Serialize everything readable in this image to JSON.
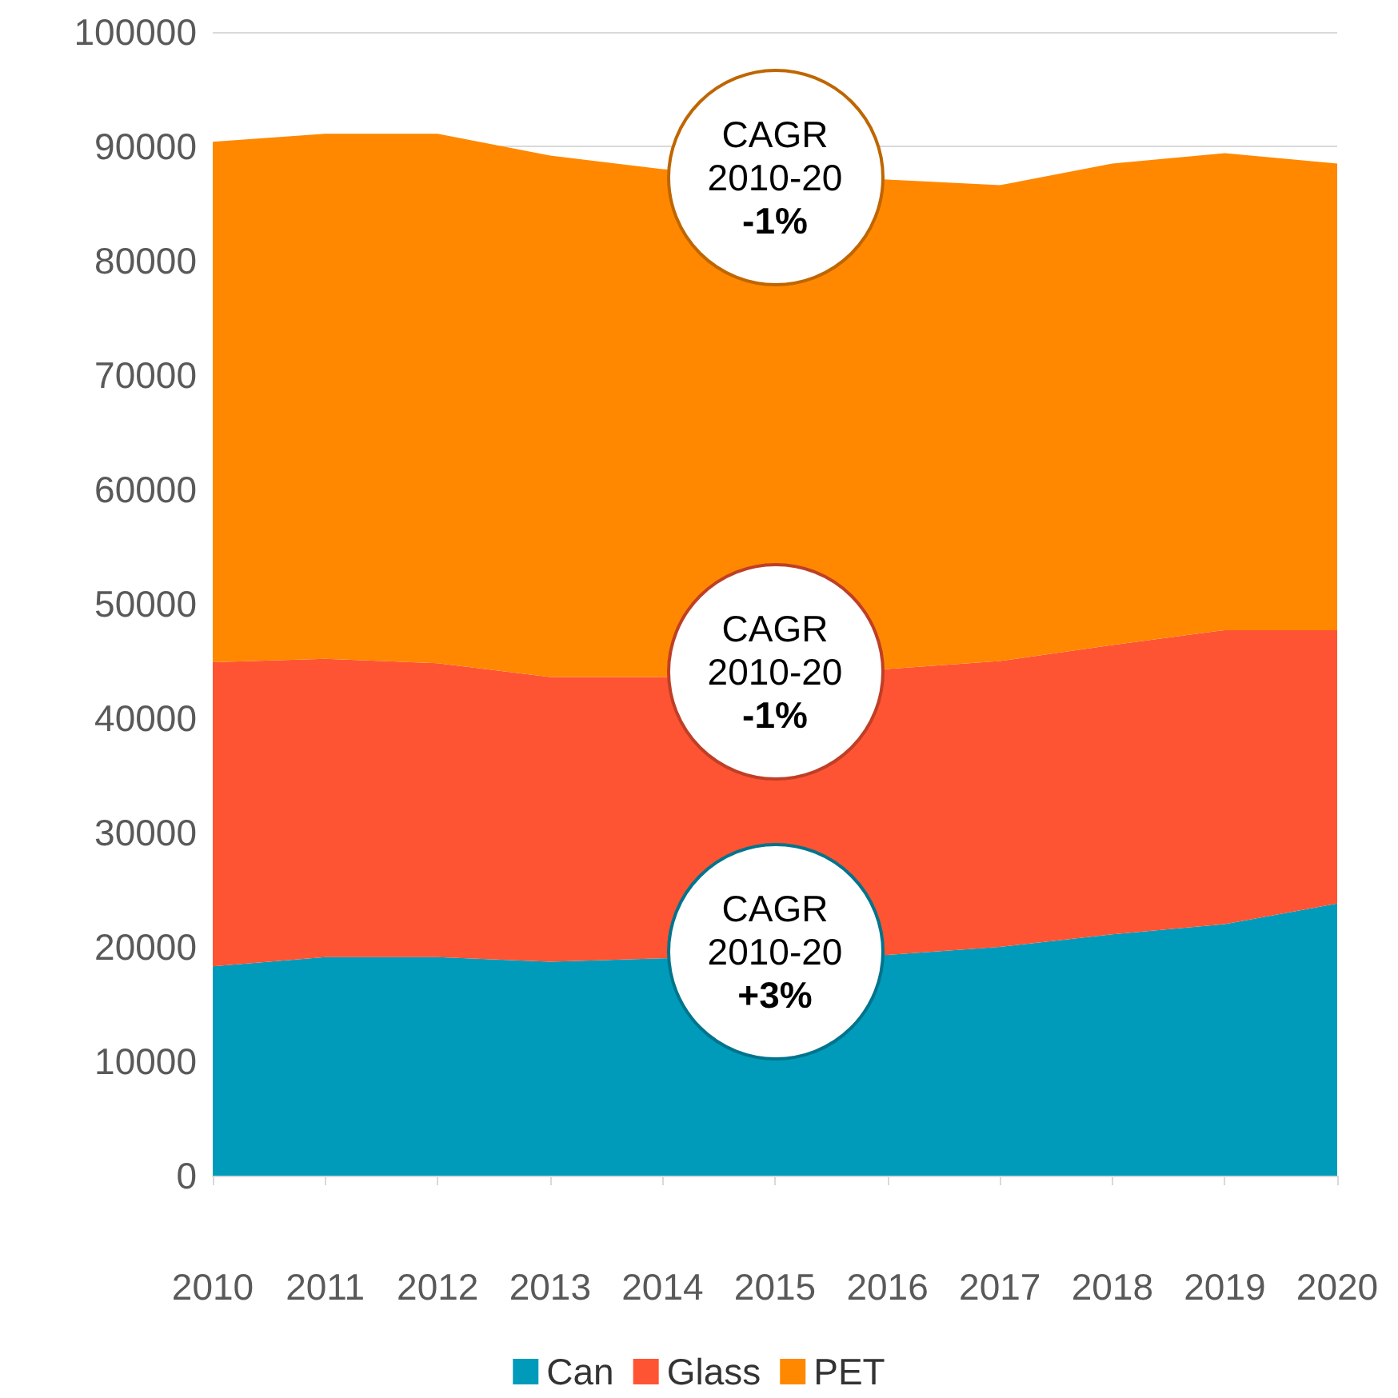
{
  "chart_data": {
    "type": "area",
    "stacked": true,
    "categories": [
      "2010",
      "2011",
      "2012",
      "2013",
      "2014",
      "2015",
      "2016",
      "2017",
      "2018",
      "2019",
      "2020"
    ],
    "series": [
      {
        "name": "Can",
        "color": "#009bbb",
        "values": [
          18300,
          19100,
          19100,
          18700,
          19000,
          null,
          19300,
          20000,
          21100,
          22000,
          23800
        ]
      },
      {
        "name": "Glass",
        "color": "#ff5433",
        "values": [
          26600,
          26100,
          25700,
          24900,
          24600,
          null,
          25000,
          25000,
          25300,
          25700,
          23900
        ]
      },
      {
        "name": "PET",
        "color": "#ff8800",
        "values": [
          45500,
          45900,
          46300,
          45600,
          44400,
          null,
          42800,
          41600,
          42100,
          41700,
          40800
        ]
      }
    ],
    "ylim": [
      0,
      100000
    ],
    "yticks": [
      0,
      10000,
      20000,
      30000,
      40000,
      50000,
      60000,
      70000,
      80000,
      90000,
      100000
    ],
    "grid": "y",
    "legend": "bottom",
    "annotations": [
      "CAGR\n2010-20\n-1%",
      "CAGR\n2010-20\n-1%",
      "CAGR\n2010-20\n+3%"
    ]
  }
}
